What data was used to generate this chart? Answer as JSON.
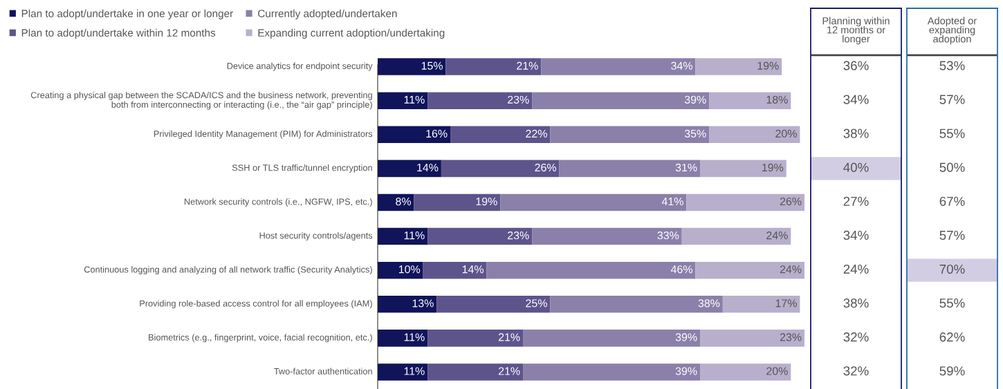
{
  "chart_data": [
    {
      "type": "bar",
      "orientation": "horizontal",
      "stacked": true,
      "legend": "top left",
      "grid": false,
      "tick_labels": "y",
      "categories": [
        "Device analytics for endpoint security",
        "Creating a physical gap between the SCADA/ICS and the business network, preventing both from interconnecting or interacting (i.e., the “air gap” principle)",
        "Privileged Identity Management (PIM) for Administrators",
        "SSH or TLS traffic/tunnel encryption",
        "Network security controls (i.e., NGFW, IPS, etc.)",
        "Host security controls/agents",
        "Continuous logging and analyzing of all network traffic (Security Analytics)",
        "Providing role-based access control for all employees (IAM)",
        "Biometrics (e.g., fingerprint, voice, facial recognition, etc.)",
        "Two-factor authentication"
      ],
      "series": [
        {
          "name": "Plan to adopt/undertake in one year or longer",
          "color": "#10145a",
          "values": [
            15,
            11,
            16,
            14,
            8,
            11,
            10,
            13,
            11,
            11
          ],
          "value_labels": [
            "15%",
            "11%",
            "16%",
            "14%",
            "8%",
            "11%",
            "10%",
            "13%",
            "11%",
            "11%"
          ]
        },
        {
          "name": "Plan to adopt/undertake within 12 months",
          "color": "#5e548c",
          "values": [
            21,
            23,
            22,
            26,
            19,
            23,
            14,
            25,
            21,
            21
          ],
          "value_labels": [
            "21%",
            "23%",
            "22%",
            "26%",
            "19%",
            "23%",
            "14%",
            "25%",
            "21%",
            "21%"
          ]
        },
        {
          "name": "Currently adopted/undertaken",
          "color": "#8b80aa",
          "values": [
            34,
            39,
            35,
            31,
            41,
            33,
            46,
            38,
            39,
            39
          ],
          "value_labels": [
            "34%",
            "39%",
            "35%",
            "31%",
            "41%",
            "33%",
            "46%",
            "38%",
            "39%",
            "39%"
          ]
        },
        {
          "name": "Expanding current adoption/undertaking",
          "color": "#b8afcc",
          "values": [
            19,
            18,
            20,
            19,
            26,
            24,
            24,
            17,
            23,
            20
          ],
          "value_labels": [
            "19%",
            "18%",
            "20%",
            "19%",
            "26%",
            "24%",
            "24%",
            "17%",
            "23%",
            "20%"
          ]
        }
      ]
    },
    {
      "type": "other",
      "title": "Planning within 12 months or longer",
      "color": "#1a1a6e",
      "annotations": [
        "36%",
        "34%",
        "38%",
        "40%",
        "27%",
        "34%",
        "24%",
        "38%",
        "32%",
        "32%"
      ],
      "colors": [
        "#ffffff",
        "#ffffff",
        "#ffffff",
        "#d3cde3",
        "#ffffff",
        "#ffffff",
        "#ffffff",
        "#ffffff",
        "#ffffff",
        "#ffffff"
      ]
    },
    {
      "type": "other",
      "title": "Adopted or expanding adoption",
      "color": "#2a6ca8",
      "annotations": [
        "53%",
        "57%",
        "55%",
        "50%",
        "67%",
        "57%",
        "70%",
        "55%",
        "62%",
        "59%"
      ],
      "colors": [
        "#ffffff",
        "#ffffff",
        "#ffffff",
        "#ffffff",
        "#ffffff",
        "#ffffff",
        "#d3cde3",
        "#ffffff",
        "#ffffff",
        "#ffffff"
      ]
    }
  ]
}
